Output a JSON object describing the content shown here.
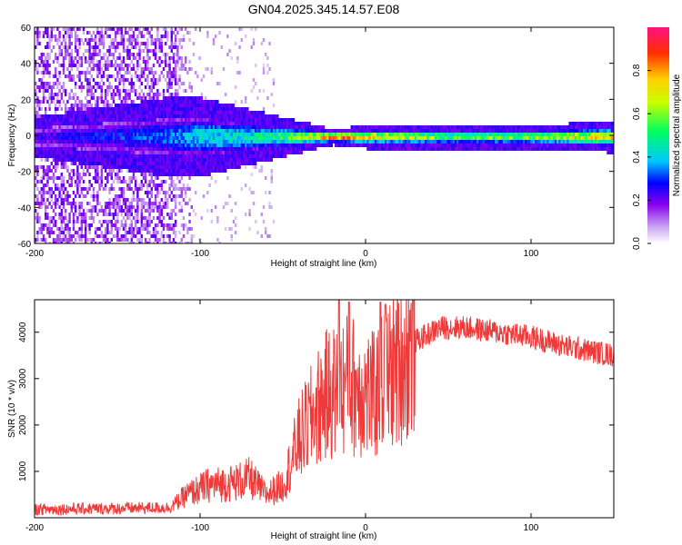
{
  "title": "GN04.2025.345.14.57.E08",
  "chart_data": [
    {
      "type": "heatmap",
      "xlabel": "Height of straight line (km)",
      "ylabel": "Frequency (Hz)",
      "xlim": [
        -200,
        150
      ],
      "ylim": [
        -60,
        60
      ],
      "xticks": [
        -200,
        -100,
        0,
        100
      ],
      "yticks": [
        -60,
        -40,
        -20,
        0,
        20,
        40,
        60
      ],
      "colorbar": {
        "label": "Normalized spectral amplitude",
        "range": [
          0.0,
          1.0
        ],
        "ticks": [
          "0.0",
          "0.2",
          "0.4",
          "0.6",
          "0.8"
        ],
        "stops": [
          "#ffffff",
          "#c8a0f0",
          "#8800ee",
          "#0000ff",
          "#00c8ff",
          "#00ff60",
          "#c8ff00",
          "#ffd000",
          "#ff3000",
          "#ff1080"
        ]
      },
      "ridge": {
        "center_hz": 0,
        "description_points": [
          {
            "x": -200,
            "amp": 0.25,
            "halfwidth_hz": 5
          },
          {
            "x": -120,
            "amp": 0.35,
            "halfwidth_hz": 10
          },
          {
            "x": -100,
            "amp": 0.45,
            "halfwidth_hz": 10
          },
          {
            "x": -60,
            "amp": 0.5,
            "halfwidth_hz": 6
          },
          {
            "x": -30,
            "amp": 0.75,
            "halfwidth_hz": 3
          },
          {
            "x": -20,
            "amp": 0.95,
            "halfwidth_hz": 2
          },
          {
            "x": 0,
            "amp": 0.8,
            "halfwidth_hz": 3
          },
          {
            "x": 50,
            "amp": 0.6,
            "halfwidth_hz": 3
          },
          {
            "x": 100,
            "amp": 0.65,
            "halfwidth_hz": 3
          },
          {
            "x": 150,
            "amp": 0.8,
            "halfwidth_hz": 4
          }
        ],
        "noise_extent_km": [
          -200,
          -115
        ]
      }
    },
    {
      "type": "line",
      "xlabel": "Height of straight line (km)",
      "ylabel": "SNR (10 * v/v)",
      "xlim": [
        -200,
        150
      ],
      "ylim": [
        0,
        4700
      ],
      "xticks": [
        -200,
        -100,
        0,
        100
      ],
      "yticks": [
        1000,
        2000,
        3000,
        4000
      ],
      "series": [
        {
          "name": "SNR",
          "color": "#ef3a3a",
          "envelope": [
            {
              "x": -200,
              "y": 180
            },
            {
              "x": -150,
              "y": 200
            },
            {
              "x": -118,
              "y": 220
            },
            {
              "x": -108,
              "y": 500
            },
            {
              "x": -95,
              "y": 700
            },
            {
              "x": -80,
              "y": 750
            },
            {
              "x": -70,
              "y": 850
            },
            {
              "x": -60,
              "y": 500
            },
            {
              "x": -50,
              "y": 700
            },
            {
              "x": -40,
              "y": 1700
            },
            {
              "x": -25,
              "y": 2600
            },
            {
              "x": -10,
              "y": 2900
            },
            {
              "x": 5,
              "y": 2600
            },
            {
              "x": 15,
              "y": 3100
            },
            {
              "x": 30,
              "y": 3800
            },
            {
              "x": 45,
              "y": 4100
            },
            {
              "x": 60,
              "y": 4100
            },
            {
              "x": 80,
              "y": 4000
            },
            {
              "x": 100,
              "y": 3900
            },
            {
              "x": 120,
              "y": 3700
            },
            {
              "x": 150,
              "y": 3500
            }
          ],
          "spikes": [
            {
              "x": -16,
              "y": 4700
            },
            {
              "x": -10,
              "y": 4650
            },
            {
              "x": 9,
              "y": 4650
            },
            {
              "x": 12,
              "y": 4600
            }
          ]
        }
      ]
    }
  ]
}
